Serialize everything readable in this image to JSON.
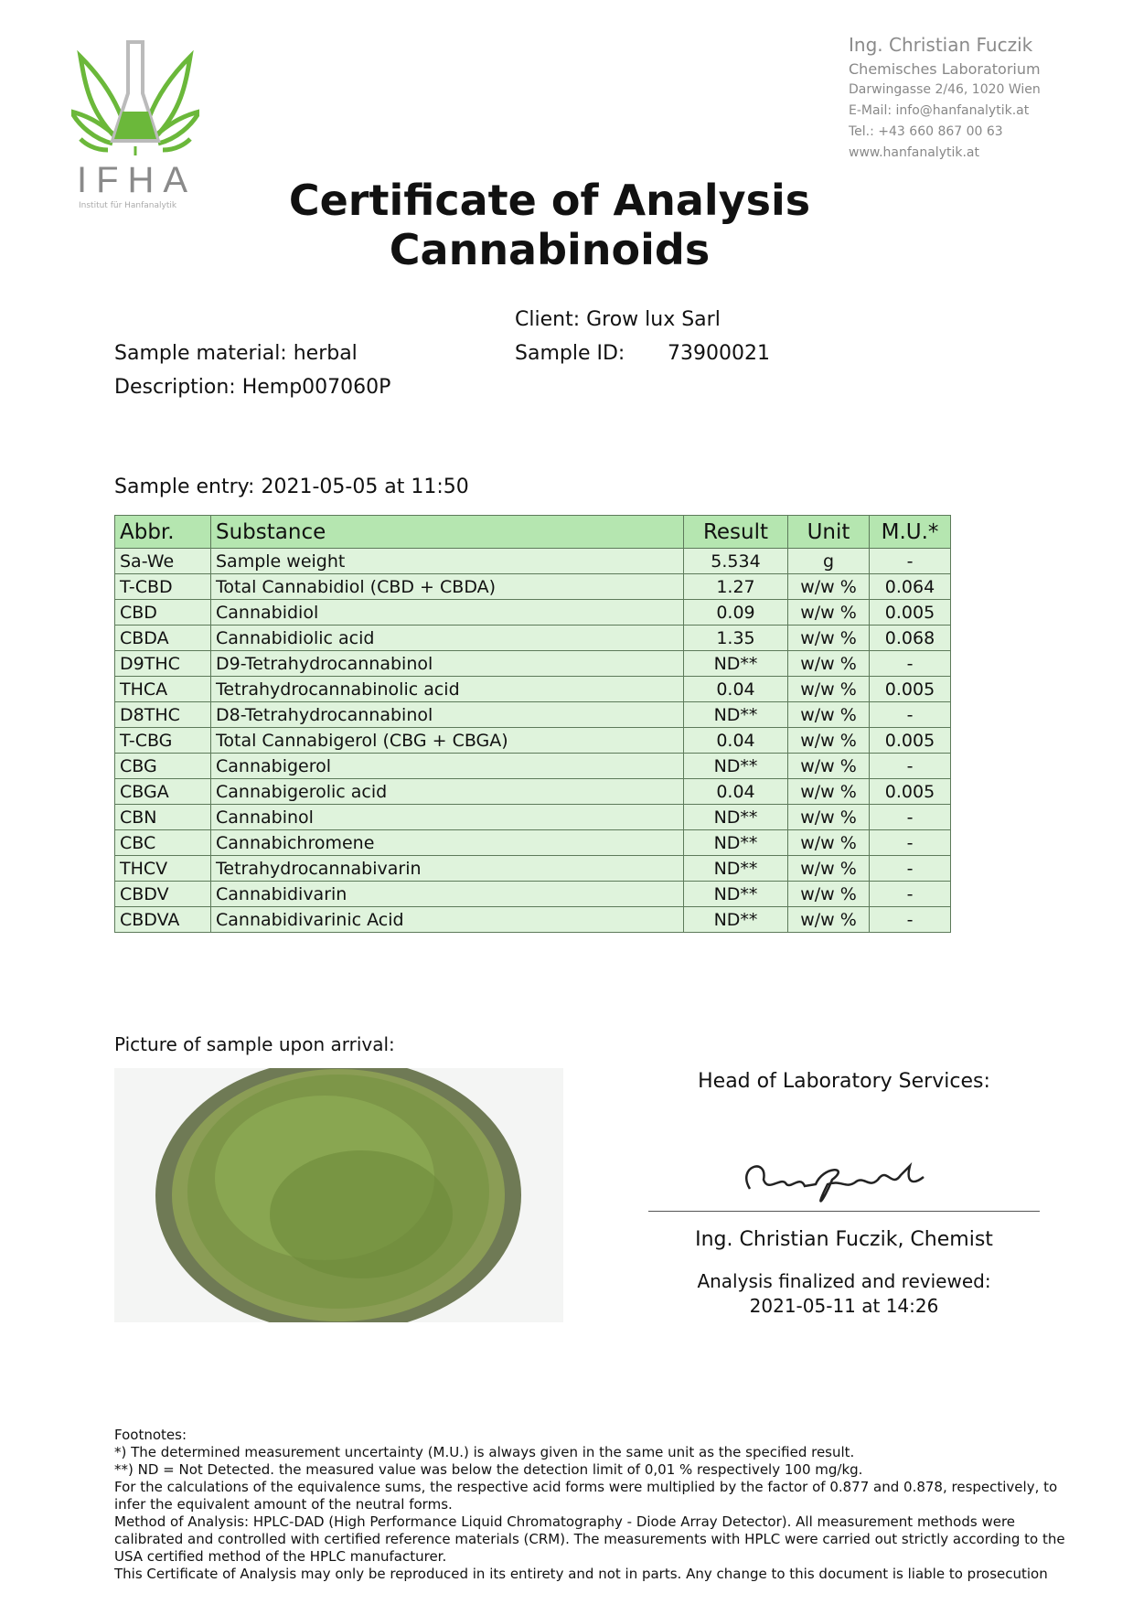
{
  "logo": {
    "brand": "IFHA",
    "subtitle": "Institut für Hanfanalytik",
    "colors": {
      "leaf": "#6bb83a",
      "flask": "#bbbbbb"
    }
  },
  "lab": {
    "name": "Ing. Christian Fuczik",
    "dept": "Chemisches Laboratorium",
    "address": "Darwingasse 2/46, 1020 Wien",
    "email": "E-Mail: info@hanfanalytik.at",
    "tel": "Tel.: +43 660 867 00 63",
    "web": "www.hanfanalytik.at"
  },
  "title": {
    "line1": "Certificate of Analysis",
    "line2": "Cannabinoids"
  },
  "meta": {
    "client": "Client: Grow lux Sarl",
    "sample_id_label": "Sample ID:",
    "sample_id": "73900021",
    "sample_material": "Sample material: herbal",
    "description": "Description: Hemp007060P",
    "sample_entry": "Sample entry: 2021-05-05 at 11:50"
  },
  "table": {
    "headers": [
      "Abbr.",
      "Substance",
      "Result",
      "Unit",
      "M.U.*"
    ],
    "rows": [
      [
        "Sa-We",
        "Sample weight",
        "5.534",
        "g",
        "-"
      ],
      [
        "T-CBD",
        "Total Cannabidiol (CBD + CBDA)",
        "1.27",
        "w/w %",
        "0.064"
      ],
      [
        "CBD",
        "Cannabidiol",
        "0.09",
        "w/w %",
        "0.005"
      ],
      [
        "CBDA",
        "Cannabidiolic acid",
        "1.35",
        "w/w %",
        "0.068"
      ],
      [
        "D9THC",
        "D9-Tetrahydrocannabinol",
        "ND**",
        "w/w %",
        "-"
      ],
      [
        "THCA",
        "Tetrahydrocannabinolic acid",
        "0.04",
        "w/w %",
        "0.005"
      ],
      [
        "D8THC",
        "D8-Tetrahydrocannabinol",
        "ND**",
        "w/w %",
        "-"
      ],
      [
        "T-CBG",
        "Total Cannabigerol (CBG + CBGA)",
        "0.04",
        "w/w %",
        "0.005"
      ],
      [
        "CBG",
        "Cannabigerol",
        "ND**",
        "w/w %",
        "-"
      ],
      [
        "CBGA",
        "Cannabigerolic acid",
        "0.04",
        "w/w %",
        "0.005"
      ],
      [
        "CBN",
        "Cannabinol",
        "ND**",
        "w/w %",
        "-"
      ],
      [
        "CBC",
        "Cannabichromene",
        "ND**",
        "w/w %",
        "-"
      ],
      [
        "THCV",
        "Tetrahydrocannabivarin",
        "ND**",
        "w/w %",
        "-"
      ],
      [
        "CBDV",
        "Cannabidivarin",
        "ND**",
        "w/w %",
        "-"
      ],
      [
        "CBDVA",
        "Cannabidivarinic Acid",
        "ND**",
        "w/w %",
        "-"
      ]
    ]
  },
  "picture_label": "Picture of sample upon arrival:",
  "signoff": {
    "head": "Head of Laboratory Services:",
    "signature_text": "Chr. Fuczik",
    "name": "Ing. Christian Fuczik, Chemist",
    "finalized_label": "Analysis finalized and reviewed:",
    "finalized_date": "2021-05-11 at 14:26"
  },
  "footnotes": [
    "Footnotes:",
    "*) The determined measurement uncertainty (M.U.) is always given in the same unit as the specified result.",
    "**) ND = Not Detected. the measured value was below the detection limit of 0,01 % respectively 100 mg/kg.",
    "For the calculations of the equivalence sums, the respective acid forms were multiplied by the factor of 0.877 and 0.878, respectively, to infer the equivalent amount of the neutral forms.",
    "Method of Analysis: HPLC-DAD (High Performance Liquid Chromatography - Diode Array Detector). All measurement methods were calibrated and controlled with certified reference materials (CRM). The measurements with HPLC were carried out strictly according to the USA certified method of the HPLC manufacturer.",
    "This Certificate of Analysis may only be reproduced in its entirety and not in parts. Any change to this document is liable to prosecution"
  ]
}
